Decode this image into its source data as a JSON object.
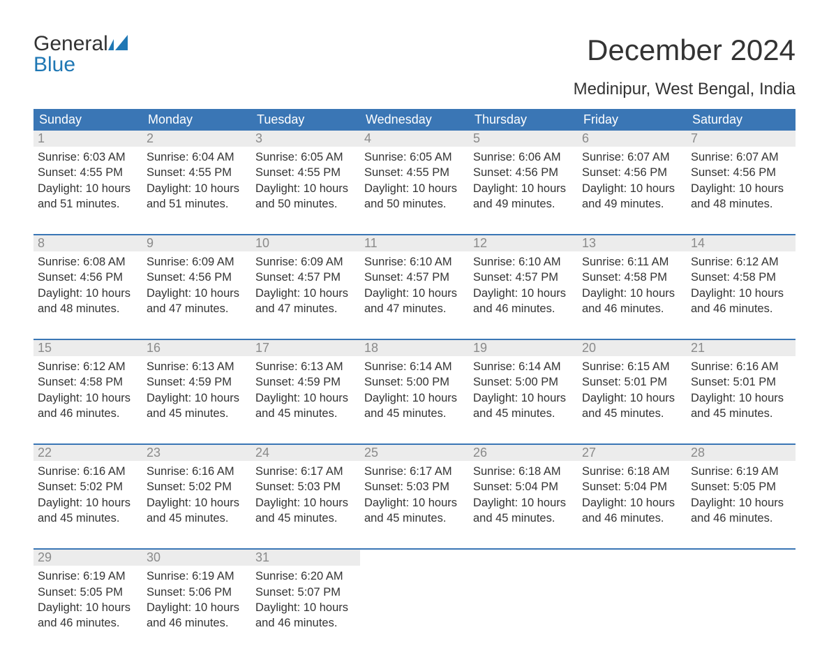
{
  "brand": {
    "word1": "General",
    "word2": "Blue",
    "accent_color": "#1f77b4"
  },
  "title": "December 2024",
  "location": "Medinipur, West Bengal, India",
  "colors": {
    "header_bg": "#3a76b5",
    "header_fg": "#ffffff",
    "daynum_bg": "#ececec",
    "daynum_fg": "#8a8a8a",
    "text": "#333333",
    "rule": "#3a76b5",
    "page_bg": "#ffffff"
  },
  "layout": {
    "columns": 7,
    "rows": 5,
    "start_weekday": "Sunday"
  },
  "weekdays": [
    "Sunday",
    "Monday",
    "Tuesday",
    "Wednesday",
    "Thursday",
    "Friday",
    "Saturday"
  ],
  "days": [
    {
      "n": 1,
      "sunrise": "6:03 AM",
      "sunset": "4:55 PM",
      "daylight": "10 hours and 51 minutes."
    },
    {
      "n": 2,
      "sunrise": "6:04 AM",
      "sunset": "4:55 PM",
      "daylight": "10 hours and 51 minutes."
    },
    {
      "n": 3,
      "sunrise": "6:05 AM",
      "sunset": "4:55 PM",
      "daylight": "10 hours and 50 minutes."
    },
    {
      "n": 4,
      "sunrise": "6:05 AM",
      "sunset": "4:55 PM",
      "daylight": "10 hours and 50 minutes."
    },
    {
      "n": 5,
      "sunrise": "6:06 AM",
      "sunset": "4:56 PM",
      "daylight": "10 hours and 49 minutes."
    },
    {
      "n": 6,
      "sunrise": "6:07 AM",
      "sunset": "4:56 PM",
      "daylight": "10 hours and 49 minutes."
    },
    {
      "n": 7,
      "sunrise": "6:07 AM",
      "sunset": "4:56 PM",
      "daylight": "10 hours and 48 minutes."
    },
    {
      "n": 8,
      "sunrise": "6:08 AM",
      "sunset": "4:56 PM",
      "daylight": "10 hours and 48 minutes."
    },
    {
      "n": 9,
      "sunrise": "6:09 AM",
      "sunset": "4:56 PM",
      "daylight": "10 hours and 47 minutes."
    },
    {
      "n": 10,
      "sunrise": "6:09 AM",
      "sunset": "4:57 PM",
      "daylight": "10 hours and 47 minutes."
    },
    {
      "n": 11,
      "sunrise": "6:10 AM",
      "sunset": "4:57 PM",
      "daylight": "10 hours and 47 minutes."
    },
    {
      "n": 12,
      "sunrise": "6:10 AM",
      "sunset": "4:57 PM",
      "daylight": "10 hours and 46 minutes."
    },
    {
      "n": 13,
      "sunrise": "6:11 AM",
      "sunset": "4:58 PM",
      "daylight": "10 hours and 46 minutes."
    },
    {
      "n": 14,
      "sunrise": "6:12 AM",
      "sunset": "4:58 PM",
      "daylight": "10 hours and 46 minutes."
    },
    {
      "n": 15,
      "sunrise": "6:12 AM",
      "sunset": "4:58 PM",
      "daylight": "10 hours and 46 minutes."
    },
    {
      "n": 16,
      "sunrise": "6:13 AM",
      "sunset": "4:59 PM",
      "daylight": "10 hours and 45 minutes."
    },
    {
      "n": 17,
      "sunrise": "6:13 AM",
      "sunset": "4:59 PM",
      "daylight": "10 hours and 45 minutes."
    },
    {
      "n": 18,
      "sunrise": "6:14 AM",
      "sunset": "5:00 PM",
      "daylight": "10 hours and 45 minutes."
    },
    {
      "n": 19,
      "sunrise": "6:14 AM",
      "sunset": "5:00 PM",
      "daylight": "10 hours and 45 minutes."
    },
    {
      "n": 20,
      "sunrise": "6:15 AM",
      "sunset": "5:01 PM",
      "daylight": "10 hours and 45 minutes."
    },
    {
      "n": 21,
      "sunrise": "6:16 AM",
      "sunset": "5:01 PM",
      "daylight": "10 hours and 45 minutes."
    },
    {
      "n": 22,
      "sunrise": "6:16 AM",
      "sunset": "5:02 PM",
      "daylight": "10 hours and 45 minutes."
    },
    {
      "n": 23,
      "sunrise": "6:16 AM",
      "sunset": "5:02 PM",
      "daylight": "10 hours and 45 minutes."
    },
    {
      "n": 24,
      "sunrise": "6:17 AM",
      "sunset": "5:03 PM",
      "daylight": "10 hours and 45 minutes."
    },
    {
      "n": 25,
      "sunrise": "6:17 AM",
      "sunset": "5:03 PM",
      "daylight": "10 hours and 45 minutes."
    },
    {
      "n": 26,
      "sunrise": "6:18 AM",
      "sunset": "5:04 PM",
      "daylight": "10 hours and 45 minutes."
    },
    {
      "n": 27,
      "sunrise": "6:18 AM",
      "sunset": "5:04 PM",
      "daylight": "10 hours and 46 minutes."
    },
    {
      "n": 28,
      "sunrise": "6:19 AM",
      "sunset": "5:05 PM",
      "daylight": "10 hours and 46 minutes."
    },
    {
      "n": 29,
      "sunrise": "6:19 AM",
      "sunset": "5:05 PM",
      "daylight": "10 hours and 46 minutes."
    },
    {
      "n": 30,
      "sunrise": "6:19 AM",
      "sunset": "5:06 PM",
      "daylight": "10 hours and 46 minutes."
    },
    {
      "n": 31,
      "sunrise": "6:20 AM",
      "sunset": "5:07 PM",
      "daylight": "10 hours and 46 minutes."
    }
  ],
  "labels": {
    "sunrise": "Sunrise:",
    "sunset": "Sunset:",
    "daylight": "Daylight:"
  }
}
